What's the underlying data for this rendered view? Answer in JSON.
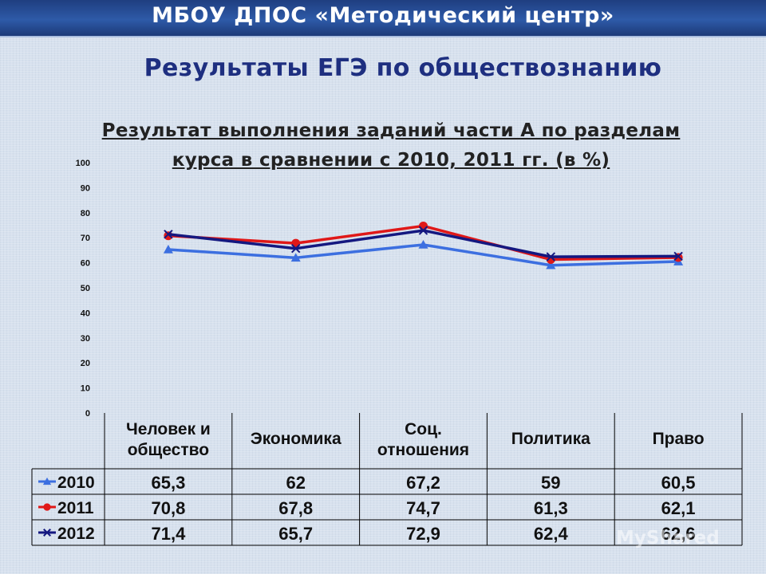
{
  "header": {
    "banner": "МБОУ ДПОС «Методический центр»"
  },
  "slide": {
    "title": "Результаты  ЕГЭ по обществознанию"
  },
  "watermark": "MyShared",
  "chart_data": {
    "type": "line",
    "title_line1": "Результат выполнения заданий части А по разделам",
    "title_line2": "курса в сравнении с 2010, 2011 гг. (в %)",
    "categories": [
      [
        "Человек и",
        "общество"
      ],
      [
        "Экономика"
      ],
      [
        "Соц.",
        "отношения"
      ],
      [
        "Политика"
      ],
      [
        "Право"
      ]
    ],
    "ylim": [
      0,
      100
    ],
    "yticks": [
      0,
      10,
      20,
      30,
      40,
      50,
      60,
      70,
      80,
      90,
      100
    ],
    "grid": false,
    "legend": "data-table",
    "series": [
      {
        "name": "2010",
        "values": [
          65.3,
          62,
          67.2,
          59,
          60.5
        ],
        "labels": [
          "65,3",
          "62",
          "67,2",
          "59",
          "60,5"
        ],
        "color": "#3c6fe0",
        "marker": "triangle"
      },
      {
        "name": "2011",
        "values": [
          70.8,
          67.8,
          74.7,
          61.3,
          62.1
        ],
        "labels": [
          "70,8",
          "67,8",
          "74,7",
          "61,3",
          "62,1"
        ],
        "color": "#e01818",
        "marker": "circle"
      },
      {
        "name": "2012",
        "values": [
          71.4,
          65.7,
          72.9,
          62.4,
          62.6
        ],
        "labels": [
          "71,4",
          "65,7",
          "72,9",
          "62,4",
          "62,6"
        ],
        "color": "#141880",
        "marker": "cross"
      }
    ]
  }
}
